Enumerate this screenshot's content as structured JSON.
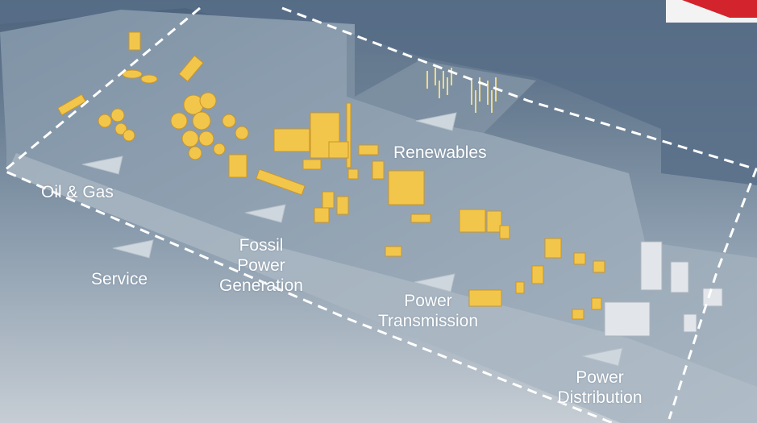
{
  "colors": {
    "background_top": "#4f6680",
    "background_bottom": "#c3cad1",
    "platform": "#8e9fae",
    "water": "#5a7189",
    "equipment": "#f2c64a",
    "label": "#ffffff",
    "dashed_outline": "#ffffff",
    "marker": "#ced7df",
    "brand_accent": "#d3232c"
  },
  "icons": [
    "triangle-marker-icon",
    "brand-corner-icon"
  ],
  "sectors": {
    "oil_gas": "Oil & Gas",
    "renewables": "Renewables",
    "service": "Service",
    "fossil": [
      "Fossil",
      "Power",
      "Generation"
    ],
    "transmission": [
      "Power",
      "Transmission"
    ],
    "distribution": [
      "Power",
      "Distribution"
    ]
  }
}
